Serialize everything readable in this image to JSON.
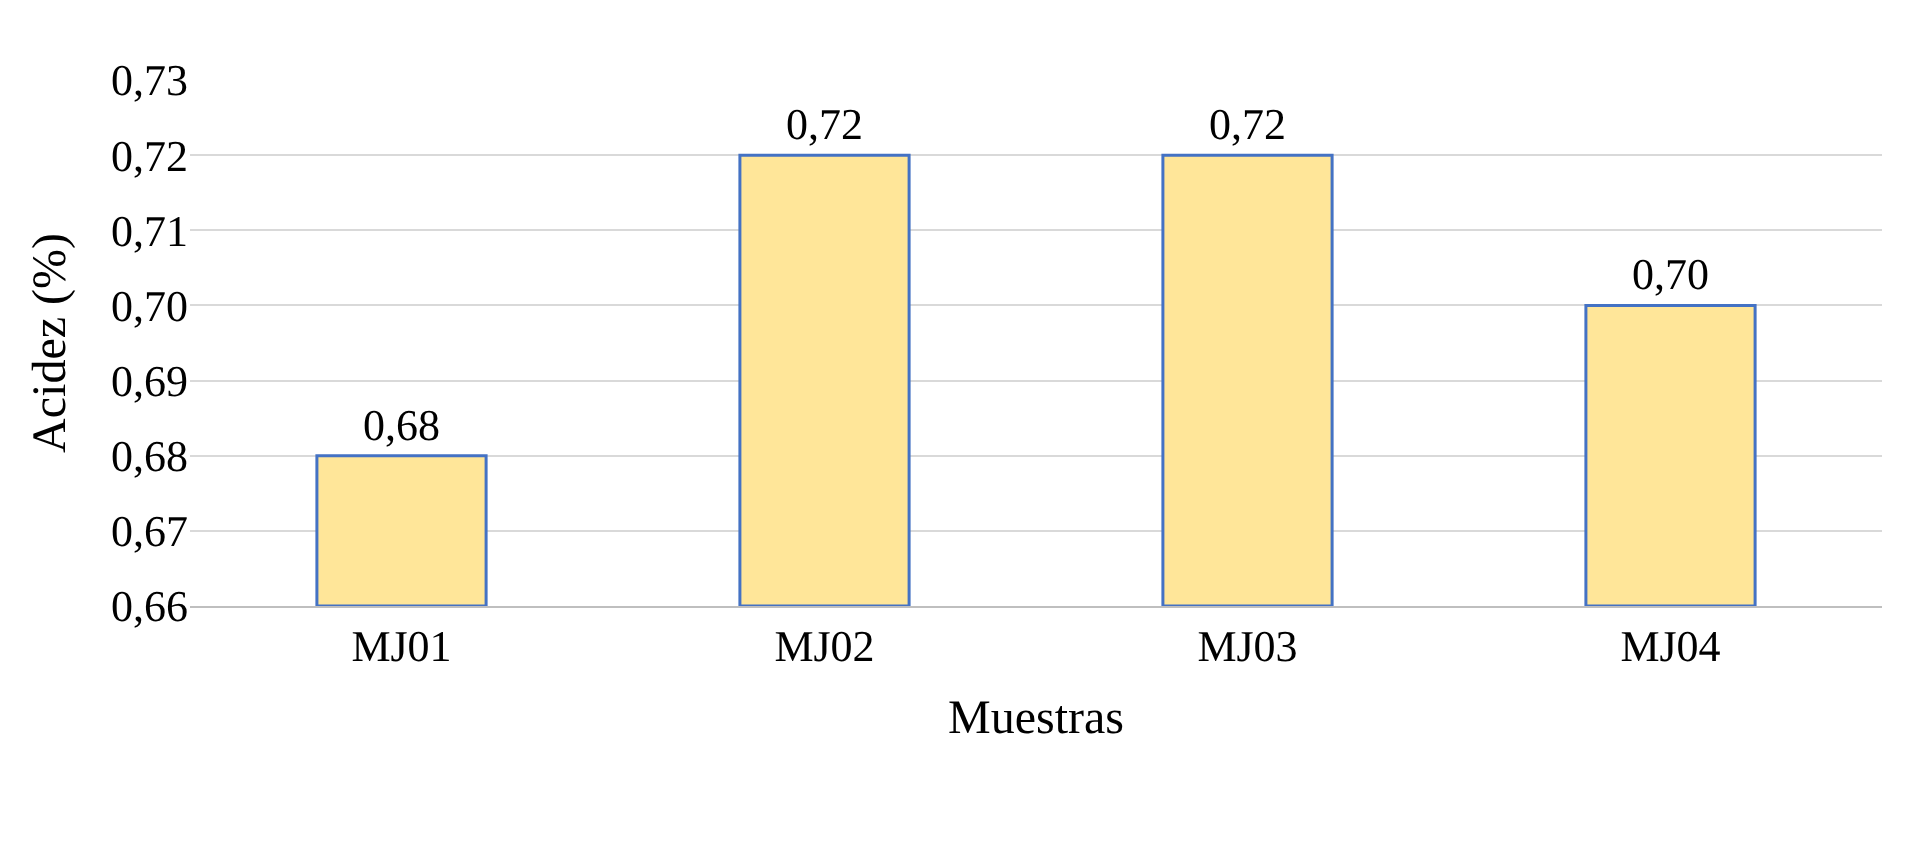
{
  "chart_data": {
    "type": "bar",
    "xlabel": "Muestras",
    "ylabel": "Acidez (%)",
    "categories": [
      "MJ01",
      "MJ02",
      "MJ03",
      "MJ04"
    ],
    "values": [
      0.68,
      0.72,
      0.72,
      0.7
    ],
    "value_labels": [
      "0,68",
      "0,72",
      "0,72",
      "0,70"
    ],
    "color": "#ffe699",
    "ylim": [
      0.66,
      0.73
    ],
    "yticks": [
      {
        "value": 0.66,
        "label": "0,66"
      },
      {
        "value": 0.67,
        "label": "0,67"
      },
      {
        "value": 0.68,
        "label": "0,68"
      },
      {
        "value": 0.69,
        "label": "0,69"
      },
      {
        "value": 0.7,
        "label": "0,70"
      },
      {
        "value": 0.71,
        "label": "0,71"
      },
      {
        "value": 0.72,
        "label": "0,72"
      },
      {
        "value": 0.73,
        "label": "0,73"
      }
    ],
    "grid": "y"
  }
}
